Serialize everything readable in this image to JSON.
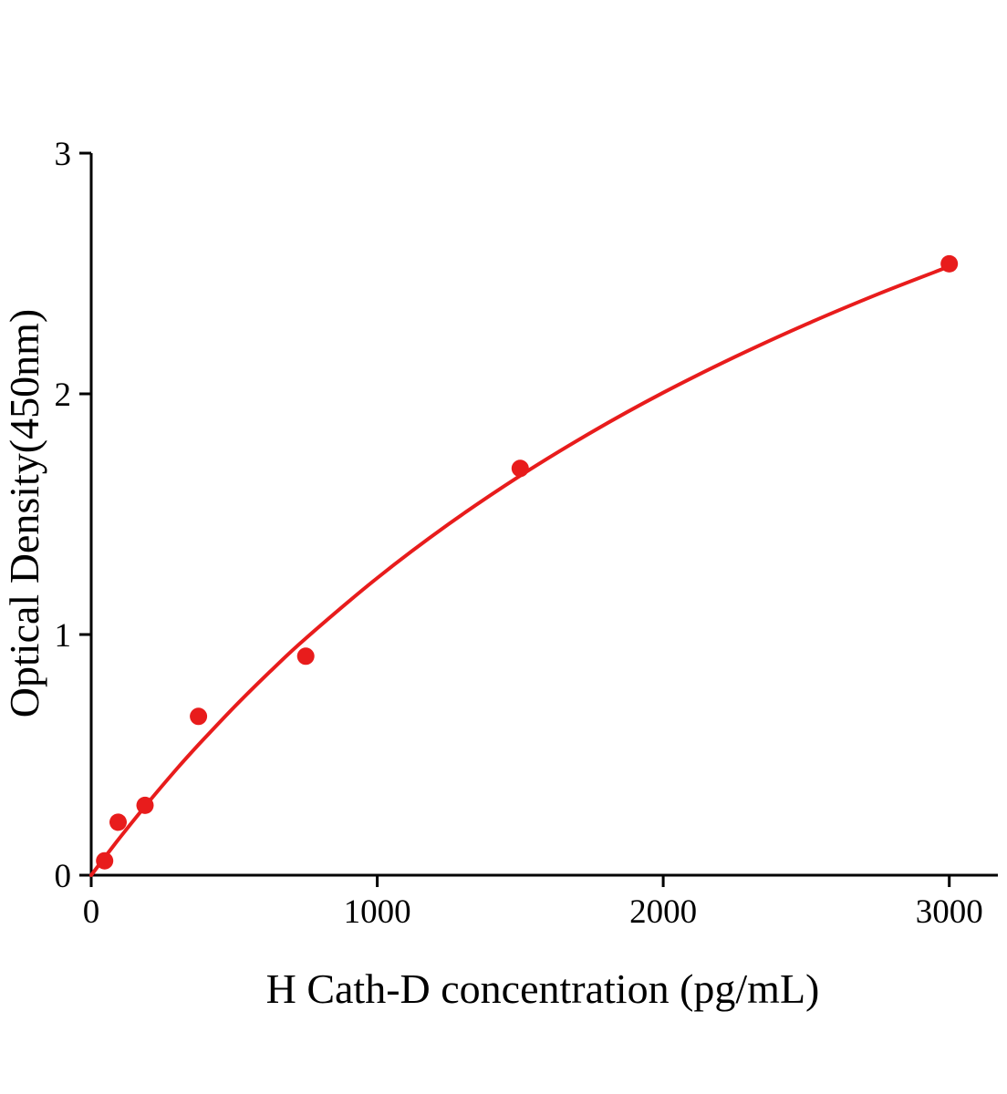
{
  "chart_data": {
    "type": "scatter",
    "title": "",
    "xlabel": "H Cath-D concentration (pg/mL)",
    "ylabel": "Optical Density(450nm)",
    "xlim": [
      0,
      3170
    ],
    "ylim": [
      0,
      3
    ],
    "x_ticks": [
      0,
      1000,
      2000,
      3000
    ],
    "y_ticks": [
      0,
      1,
      2,
      3
    ],
    "grid": false,
    "legend": "none",
    "point_color": "#e81c1c",
    "curve_color": "#e81c1c",
    "axis_color": "#000000",
    "points": [
      {
        "x": 47,
        "y": 0.06
      },
      {
        "x": 94,
        "y": 0.22
      },
      {
        "x": 188,
        "y": 0.29
      },
      {
        "x": 375,
        "y": 0.66
      },
      {
        "x": 750,
        "y": 0.91
      },
      {
        "x": 1500,
        "y": 1.69
      },
      {
        "x": 3000,
        "y": 2.54
      }
    ],
    "fit_curve": [
      [
        0,
        0.0
      ],
      [
        100,
        0.156
      ],
      [
        200,
        0.303
      ],
      [
        300,
        0.443
      ],
      [
        375,
        0.542
      ],
      [
        500,
        0.699
      ],
      [
        625,
        0.846
      ],
      [
        750,
        0.984
      ],
      [
        1000,
        1.235
      ],
      [
        1250,
        1.459
      ],
      [
        1500,
        1.66
      ],
      [
        1750,
        1.841
      ],
      [
        2000,
        2.005
      ],
      [
        2250,
        2.153
      ],
      [
        2500,
        2.289
      ],
      [
        2750,
        2.414
      ],
      [
        3000,
        2.529
      ]
    ]
  }
}
